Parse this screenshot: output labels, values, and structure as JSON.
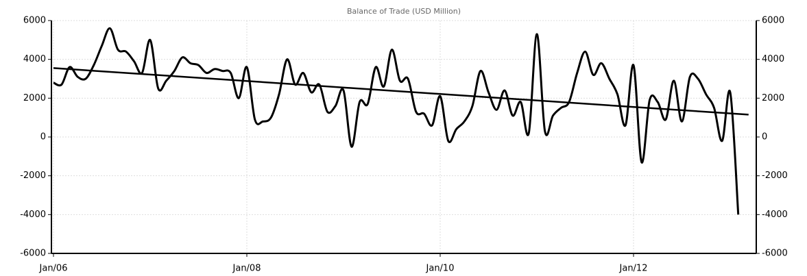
{
  "chart_data": {
    "type": "line",
    "title": "Balance of Trade (USD Million)",
    "categories": [
      "Jan/06",
      null,
      null,
      null,
      null,
      null,
      null,
      null,
      null,
      null,
      null,
      null,
      null,
      null,
      null,
      null,
      null,
      null,
      null,
      null,
      null,
      null,
      null,
      null,
      "Jan/08",
      null,
      null,
      null,
      null,
      null,
      null,
      null,
      null,
      null,
      null,
      null,
      null,
      null,
      null,
      null,
      null,
      null,
      null,
      null,
      null,
      null,
      null,
      null,
      "Jan/10",
      null,
      null,
      null,
      null,
      null,
      null,
      null,
      null,
      null,
      null,
      null,
      null,
      null,
      null,
      null,
      null,
      null,
      null,
      null,
      null,
      null,
      null,
      null,
      "Jan/12",
      null,
      null,
      null,
      null,
      null,
      null,
      null,
      null,
      null,
      null,
      null,
      null,
      null
    ],
    "values": [
      2800,
      2700,
      3600,
      3100,
      3000,
      3700,
      4700,
      5600,
      4500,
      4400,
      3900,
      3300,
      5000,
      2500,
      2900,
      3400,
      4100,
      3800,
      3700,
      3300,
      3500,
      3400,
      3300,
      2000,
      3600,
      900,
      800,
      1000,
      2200,
      4000,
      2700,
      3300,
      2300,
      2700,
      1300,
      1600,
      2400,
      -500,
      1800,
      1700,
      3600,
      2600,
      4500,
      2900,
      3000,
      1300,
      1200,
      600,
      2100,
      -200,
      400,
      800,
      1600,
      3400,
      2300,
      1400,
      2400,
      1100,
      1800,
      200,
      5300,
      300,
      1100,
      1500,
      1800,
      3300,
      4400,
      3200,
      3800,
      3000,
      2200,
      600,
      3700,
      -1300,
      1900,
      1800,
      900,
      2900,
      800,
      3100,
      3000,
      2200,
      1500,
      -200,
      2300,
      -4000
    ],
    "color": "#000000",
    "trendline": {
      "values": [
        3550,
        1150
      ],
      "color": "#000000"
    },
    "ylim": [
      -6000,
      6000
    ],
    "yticks": [
      -6000,
      -4000,
      -2000,
      0,
      2000,
      4000,
      6000
    ],
    "y2lim": [
      -6000,
      6000
    ],
    "y2ticks": [
      -6000,
      -4000,
      -2000,
      0,
      2000,
      4000,
      6000
    ],
    "grid": true
  }
}
